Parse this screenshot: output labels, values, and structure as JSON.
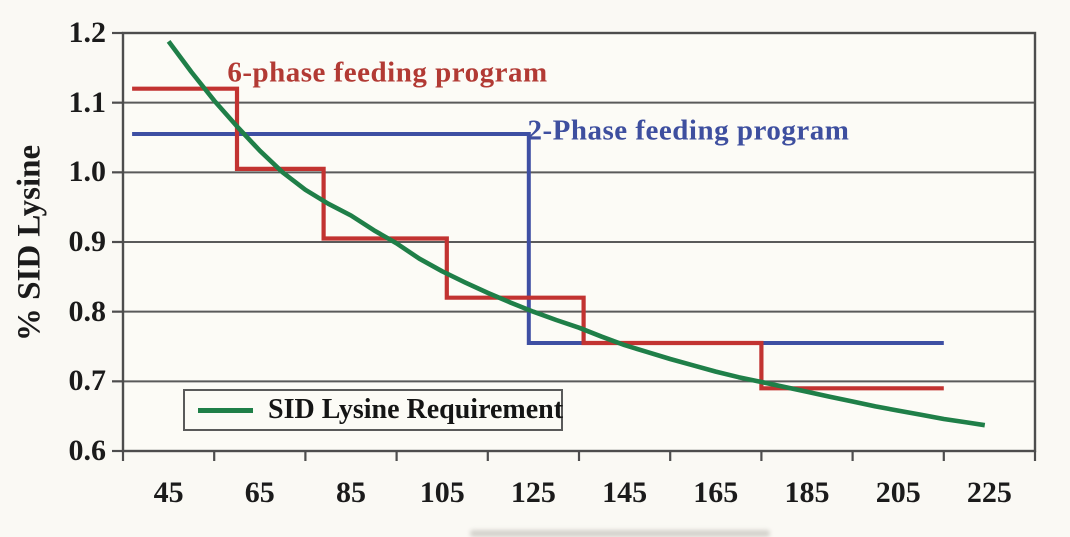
{
  "chart_data": {
    "type": "line",
    "title": "",
    "xlabel": "",
    "ylabel": "% SID Lysine",
    "xlim": [
      35,
      235
    ],
    "ylim": [
      0.6,
      1.2
    ],
    "grid": "horizontal-gridlines-only",
    "legend_position": "inside-bottom-left",
    "x_ticks": [
      45,
      65,
      85,
      105,
      125,
      145,
      165,
      185,
      205,
      225
    ],
    "x_tick_labels": [
      "45",
      "65",
      "85",
      "105",
      "125",
      "145",
      "165",
      "185",
      "205",
      "225"
    ],
    "x_tick_marks": [
      35,
      55,
      75,
      95,
      115,
      135,
      155,
      175,
      195,
      215,
      235
    ],
    "y_ticks": [
      1.2,
      1.1,
      1.0,
      0.9,
      0.8,
      0.7,
      0.6
    ],
    "y_tick_labels": [
      "1.2",
      "1.1",
      "1.0",
      "0.9",
      "0.8",
      "0.7",
      "0.6"
    ],
    "colors": {
      "requirement_curve": "#1f7f48",
      "six_phase": "#c23331",
      "two_phase": "#3e4fa3",
      "grid": "#5a5a5a",
      "border": "#4d4d4d",
      "text": "#1b1b1b"
    },
    "series": [
      {
        "id": "two_phase",
        "name": "2-Phase feeding program",
        "type": "step-line",
        "color": "#3e4fa3",
        "points": [
          [
            37,
            1.055
          ],
          [
            124,
            1.055
          ],
          [
            124,
            0.755
          ],
          [
            215,
            0.755
          ]
        ]
      },
      {
        "id": "six_phase",
        "name": "6-phase feeding program",
        "type": "step-line",
        "color": "#c23331",
        "points": [
          [
            37,
            1.12
          ],
          [
            60,
            1.12
          ],
          [
            60,
            1.005
          ],
          [
            79,
            1.005
          ],
          [
            79,
            0.905
          ],
          [
            106,
            0.905
          ],
          [
            106,
            0.82
          ],
          [
            136,
            0.82
          ],
          [
            136,
            0.755
          ],
          [
            175,
            0.755
          ],
          [
            175,
            0.69
          ],
          [
            215,
            0.69
          ]
        ]
      },
      {
        "id": "requirement",
        "name": "SID Lysine Requirement",
        "type": "smooth-curve",
        "color": "#1f7f48",
        "points": [
          [
            45,
            1.188
          ],
          [
            50,
            1.144
          ],
          [
            55,
            1.103
          ],
          [
            60,
            1.066
          ],
          [
            65,
            1.031
          ],
          [
            70,
            1.0
          ],
          [
            75,
            0.975
          ],
          [
            80,
            0.955
          ],
          [
            85,
            0.938
          ],
          [
            90,
            0.917
          ],
          [
            95,
            0.898
          ],
          [
            100,
            0.876
          ],
          [
            105,
            0.858
          ],
          [
            110,
            0.842
          ],
          [
            115,
            0.827
          ],
          [
            120,
            0.813
          ],
          [
            125,
            0.8
          ],
          [
            130,
            0.788
          ],
          [
            135,
            0.777
          ],
          [
            140,
            0.764
          ],
          [
            145,
            0.752
          ],
          [
            150,
            0.742
          ],
          [
            155,
            0.732
          ],
          [
            160,
            0.723
          ],
          [
            165,
            0.714
          ],
          [
            170,
            0.706
          ],
          [
            175,
            0.699
          ],
          [
            180,
            0.692
          ],
          [
            185,
            0.685
          ],
          [
            190,
            0.678
          ],
          [
            195,
            0.671
          ],
          [
            200,
            0.664
          ],
          [
            205,
            0.658
          ],
          [
            210,
            0.652
          ],
          [
            215,
            0.646
          ],
          [
            220,
            0.641
          ],
          [
            224,
            0.637
          ]
        ]
      }
    ],
    "annotations": [
      {
        "text": "6-phase feeding program",
        "color": "#b23a34",
        "x": 93,
        "y": 1.142
      },
      {
        "text": "2-Phase feeding program",
        "color": "#3e4f9f",
        "x": 159,
        "y": 1.06
      }
    ],
    "legend": {
      "entries": [
        {
          "label": "SID Lysine Requirement",
          "color": "#1f7f48",
          "series": "requirement"
        }
      ]
    }
  }
}
